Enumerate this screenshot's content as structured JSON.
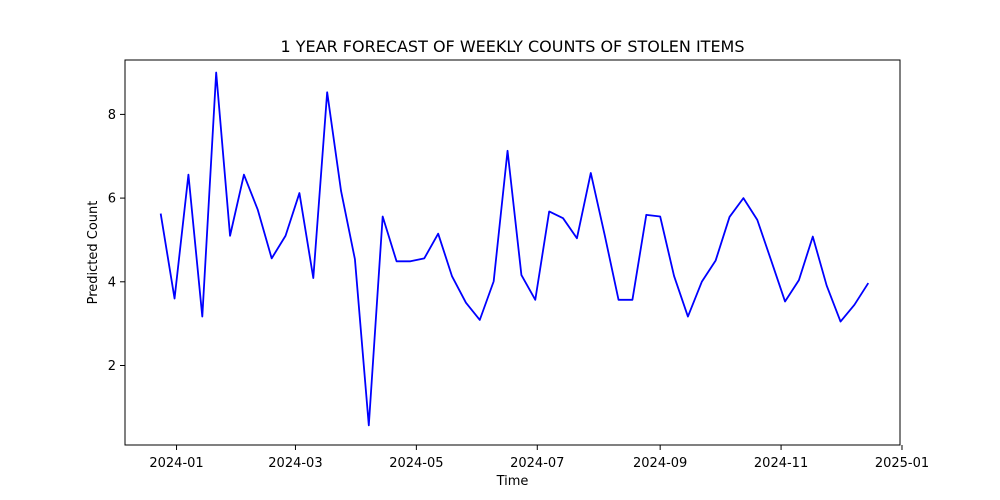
{
  "chart_data": {
    "type": "line",
    "title": "1 YEAR FORECAST OF WEEKLY COUNTS OF STOLEN ITEMS",
    "xlabel": "Time",
    "ylabel": "Predicted Count",
    "grid": false,
    "legend": "none",
    "x_tick_labels": [
      "2024-01",
      "2024-03",
      "2024-05",
      "2024-07",
      "2024-09",
      "2024-11",
      "2025-01"
    ],
    "x_tick_dates": [
      "2024-01-01",
      "2024-03-01",
      "2024-05-01",
      "2024-07-01",
      "2024-09-01",
      "2024-11-01",
      "2025-01-01"
    ],
    "y_ticks": [
      2,
      4,
      6,
      8
    ],
    "xlim": [
      "2023-12-06",
      "2024-12-31"
    ],
    "ylim": [
      0.1,
      9.3
    ],
    "series": [
      {
        "color": "#0000ff",
        "x": [
          "2023-12-24",
          "2023-12-31",
          "2024-01-07",
          "2024-01-14",
          "2024-01-21",
          "2024-01-28",
          "2024-02-04",
          "2024-02-11",
          "2024-02-18",
          "2024-02-25",
          "2024-03-03",
          "2024-03-10",
          "2024-03-17",
          "2024-03-24",
          "2024-03-31",
          "2024-04-07",
          "2024-04-14",
          "2024-04-21",
          "2024-04-28",
          "2024-05-05",
          "2024-05-12",
          "2024-05-19",
          "2024-05-26",
          "2024-06-02",
          "2024-06-09",
          "2024-06-16",
          "2024-06-23",
          "2024-06-30",
          "2024-07-07",
          "2024-07-14",
          "2024-07-21",
          "2024-07-28",
          "2024-08-04",
          "2024-08-11",
          "2024-08-18",
          "2024-08-25",
          "2024-09-01",
          "2024-09-08",
          "2024-09-15",
          "2024-09-22",
          "2024-09-29",
          "2024-10-06",
          "2024-10-13",
          "2024-10-20",
          "2024-10-27",
          "2024-11-03",
          "2024-11-10",
          "2024-11-17",
          "2024-11-24",
          "2024-12-01",
          "2024-12-08",
          "2024-12-15"
        ],
        "values": [
          5.63,
          3.6,
          6.56,
          3.17,
          9.0,
          5.1,
          6.56,
          5.72,
          4.56,
          5.1,
          6.12,
          4.09,
          8.53,
          6.17,
          4.54,
          0.57,
          5.56,
          4.49,
          4.49,
          4.56,
          5.15,
          4.13,
          3.5,
          3.09,
          4.01,
          7.13,
          4.16,
          3.57,
          5.68,
          5.52,
          5.04,
          6.6,
          5.12,
          3.57,
          3.57,
          5.6,
          5.56,
          4.14,
          3.17,
          4.0,
          4.51,
          5.55,
          6.0,
          5.48,
          4.51,
          3.53,
          4.04,
          5.08,
          3.91,
          3.05,
          3.45,
          3.97
        ]
      }
    ]
  }
}
